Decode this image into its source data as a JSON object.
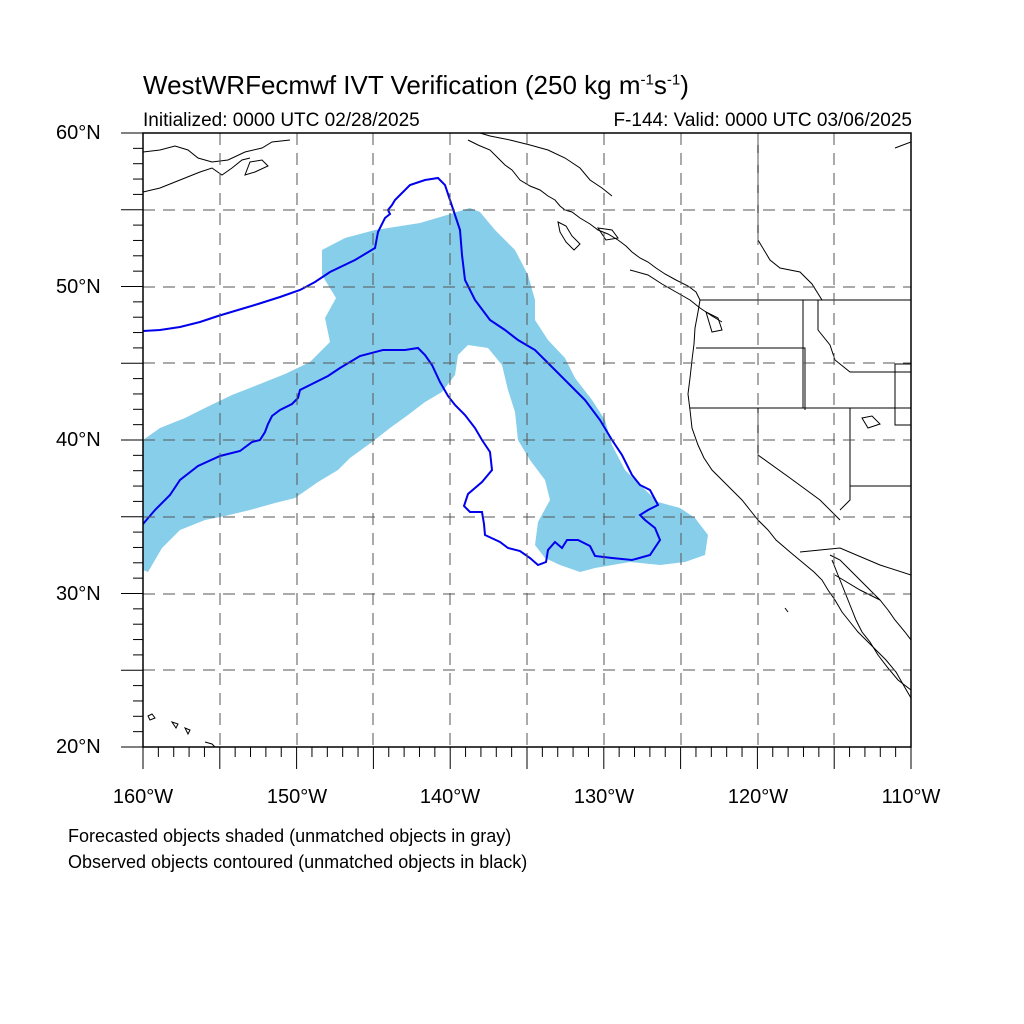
{
  "header": {
    "title_text": "WestWRFecmwf IVT Verification (250 kg m",
    "title_exp1": "-1",
    "title_mid": "s",
    "title_exp2": "-1",
    "title_end": ")",
    "initialized": "Initialized: 0000 UTC 02/28/2025",
    "valid": "F-144: Valid: 0000 UTC 03/06/2025"
  },
  "axes": {
    "lat_labels": [
      "60°N",
      "50°N",
      "40°N",
      "30°N",
      "20°N"
    ],
    "lon_labels": [
      "160°W",
      "150°W",
      "140°W",
      "130°W",
      "120°W",
      "110°W"
    ],
    "lat_range": [
      20,
      60
    ],
    "lon_range": [
      -160,
      -110
    ],
    "grid": "dashed, every 5°"
  },
  "legend": {
    "line1": "Forecasted objects shaded (unmatched objects in gray)",
    "line2": "Observed objects contoured (unmatched objects in black)"
  },
  "colors": {
    "forecast_fill": "#87ceeb",
    "observed_contour": "#0000ee",
    "coastline": "#000000",
    "grid": "#555555"
  }
}
